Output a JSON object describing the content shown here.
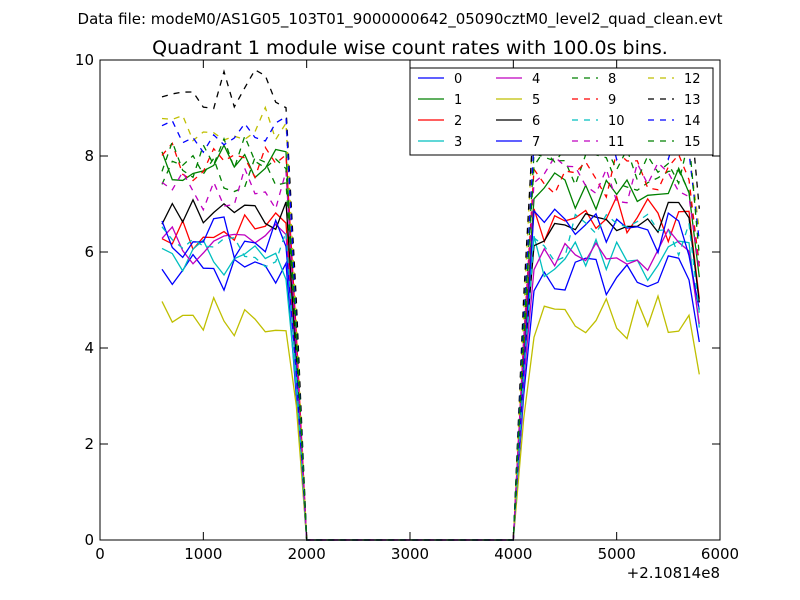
{
  "chart_data": {
    "type": "line",
    "suptitle": "Data file: modeM0/AS1G05_103T01_9000000642_05090cztM0_level2_quad_clean.evt",
    "title": "Quadrant 1 module wise count rates with 100.0s bins.",
    "xlabel": "",
    "ylabel": "",
    "x_offset_label": "+2.10814e8",
    "xlim": [
      0,
      6000
    ],
    "ylim": [
      0,
      10
    ],
    "xticks": [
      0,
      1000,
      2000,
      3000,
      4000,
      5000,
      6000
    ],
    "xtick_labels": [
      "0",
      "1000",
      "2000",
      "3000",
      "4000",
      "5000",
      "6000"
    ],
    "yticks": [
      0,
      2,
      4,
      6,
      8,
      10
    ],
    "ytick_labels": [
      "0",
      "2",
      "4",
      "6",
      "8",
      "10"
    ],
    "grid": false,
    "legend_position": "top-right",
    "legend_columns": 4,
    "segments": [
      {
        "x_start": 600,
        "x_end": 1800,
        "step": 100
      },
      {
        "x_start": 4200,
        "x_end": 5800,
        "step": 100
      }
    ],
    "gap_x": [
      1900,
      2000,
      2100,
      4000,
      4100
    ],
    "series": [
      {
        "name": "0",
        "color": "#0000ff",
        "dash": "solid",
        "level1": 5.5,
        "level2": 5.5,
        "drop_at_1900": 3.0
      },
      {
        "name": "1",
        "color": "#008000",
        "dash": "solid",
        "level1": 7.8,
        "level2": 7.3,
        "drop_at_1900": 4.0
      },
      {
        "name": "2",
        "color": "#ff0000",
        "dash": "solid",
        "level1": 6.5,
        "level2": 6.7,
        "drop_at_1900": 3.5
      },
      {
        "name": "3",
        "color": "#00bfbf",
        "dash": "solid",
        "level1": 5.8,
        "level2": 5.9,
        "drop_at_1900": 3.2
      },
      {
        "name": "4",
        "color": "#bf00bf",
        "dash": "solid",
        "level1": 6.2,
        "level2": 6.0,
        "drop_at_1900": 3.4
      },
      {
        "name": "5",
        "color": "#bfbf00",
        "dash": "solid",
        "level1": 4.7,
        "level2": 4.6,
        "drop_at_1900": 2.8
      },
      {
        "name": "6",
        "color": "#000000",
        "dash": "solid",
        "level1": 6.8,
        "level2": 6.6,
        "drop_at_1900": 3.8
      },
      {
        "name": "7",
        "color": "#0000ff",
        "dash": "solid",
        "level1": 6.3,
        "level2": 6.4,
        "drop_at_1900": 3.5
      },
      {
        "name": "8",
        "color": "#008000",
        "dash": "dashed",
        "level1": 7.6,
        "level2": 7.7,
        "drop_at_1900": 4.2
      },
      {
        "name": "9",
        "color": "#ff0000",
        "dash": "dashed",
        "level1": 7.9,
        "level2": 7.6,
        "drop_at_1900": 4.3
      },
      {
        "name": "10",
        "color": "#00bfbf",
        "dash": "dashed",
        "level1": 6.1,
        "level2": 6.3,
        "drop_at_1900": 3.4
      },
      {
        "name": "11",
        "color": "#bf00bf",
        "dash": "dashed",
        "level1": 7.3,
        "level2": 7.5,
        "drop_at_1900": 4.0
      },
      {
        "name": "12",
        "color": "#bfbf00",
        "dash": "dashed",
        "level1": 8.7,
        "level2": 8.6,
        "drop_at_1900": 4.6
      },
      {
        "name": "13",
        "color": "#000000",
        "dash": "dashed",
        "level1": 9.4,
        "level2": 9.2,
        "drop_at_1900": 5.0
      },
      {
        "name": "14",
        "color": "#0000ff",
        "dash": "dashed",
        "level1": 8.4,
        "level2": 8.3,
        "drop_at_1900": 4.5
      },
      {
        "name": "15",
        "color": "#008000",
        "dash": "dashed",
        "level1": 8.0,
        "level2": 7.9,
        "drop_at_1900": 4.4
      }
    ]
  }
}
